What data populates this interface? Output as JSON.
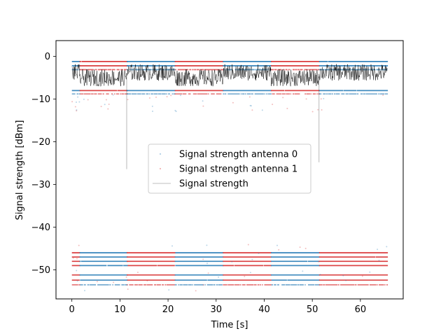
{
  "chart_data": {
    "type": "scatter",
    "xlabel": "Time [s]",
    "ylabel": "Signal strength [dBm]",
    "xlim": [
      -3.3,
      68.9
    ],
    "ylim": [
      -56.8,
      3.7
    ],
    "xticks": [
      0,
      10,
      20,
      30,
      40,
      50,
      60
    ],
    "yticks": [
      0,
      -10,
      -20,
      -30,
      -40,
      -50
    ],
    "xtick_labels": [
      "0",
      "10",
      "20",
      "30",
      "40",
      "50",
      "60"
    ],
    "ytick_labels": [
      "0",
      "−10",
      "−20",
      "−30",
      "−40",
      "−50"
    ],
    "grid": false,
    "legend_position": "center",
    "colors": {
      "antenna0": "#1f77b4",
      "antenna1": "#d62728",
      "strength": "#000000"
    },
    "segments": [
      {
        "x": [
          0,
          1.6
        ],
        "antenna0": "high",
        "antenna1": "low"
      },
      {
        "x": [
          1.6,
          11.4
        ],
        "antenna0": "low",
        "antenna1": "high"
      },
      {
        "x": [
          11.4,
          21.4
        ],
        "antenna0": "high",
        "antenna1": "low"
      },
      {
        "x": [
          21.4,
          31.4
        ],
        "antenna0": "low",
        "antenna1": "high"
      },
      {
        "x": [
          31.4,
          41.4
        ],
        "antenna0": "high",
        "antenna1": "low"
      },
      {
        "x": [
          41.4,
          51.4
        ],
        "antenna0": "low",
        "antenna1": "high"
      },
      {
        "x": [
          51.4,
          65.6
        ],
        "antenna0": "high",
        "antenna1": "low"
      }
    ],
    "levels": {
      "high_upper": [
        -1.2,
        -2.2,
        -3.1
      ],
      "high_lower": [
        -8.0,
        -8.8
      ],
      "low_upper": [
        -46.0,
        -47.0,
        -48.0,
        -49.0
      ],
      "low_lower": [
        -51.2,
        -52.4,
        -53.5
      ]
    },
    "strength_range": {
      "antenna0_strong": [
        -1.8,
        -5.7
      ],
      "antenna1_strong": [
        -3.0,
        -7.0
      ]
    },
    "strength_spikes": [
      {
        "x": 11.4,
        "y": -26.4
      },
      {
        "x": 51.4,
        "y": -24.8
      }
    ],
    "series": [
      {
        "name": "Signal strength antenna 0",
        "marker": "point",
        "color": "#1f77b4"
      },
      {
        "name": "Signal strength antenna 1",
        "marker": "point",
        "color": "#d62728"
      },
      {
        "name": "Signal strength",
        "marker": "line",
        "color": "#000000"
      }
    ]
  }
}
